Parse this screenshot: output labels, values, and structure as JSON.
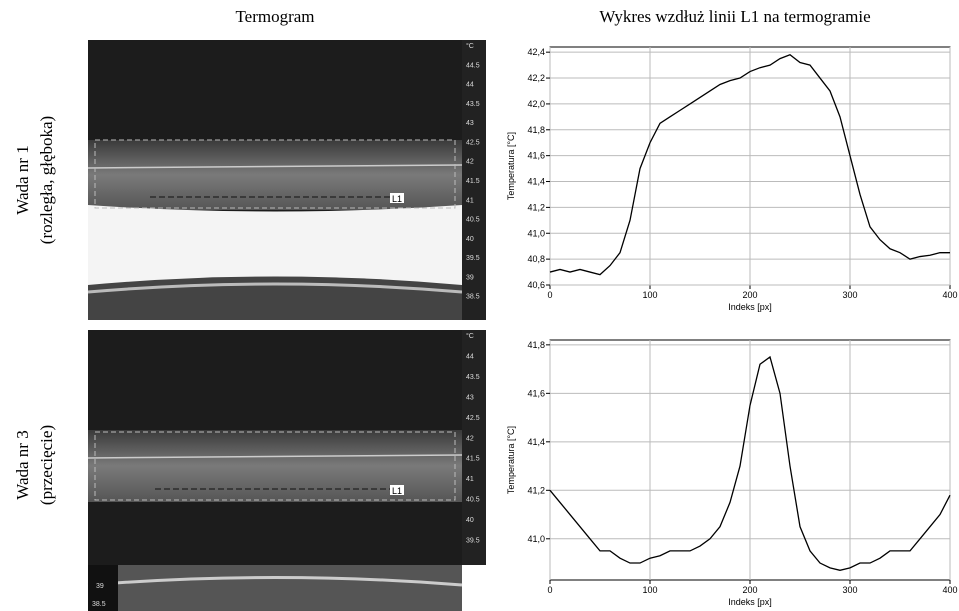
{
  "column_titles": [
    "Termogram",
    "Wykres wzdłuż linii L1 na termogramie"
  ],
  "row_labels": [
    [
      "Wada nr 1",
      "(rozległa, głęboka)"
    ],
    [
      "Wada nr 3",
      "(przecięcie)"
    ]
  ],
  "thermograms": [
    {
      "scale": [
        "°C",
        "44.5",
        "44",
        "43.5",
        "43",
        "42.5",
        "42",
        "41.5",
        "41",
        "40.5",
        "40",
        "39.5",
        "39",
        "38.5"
      ],
      "line_label": "L1"
    },
    {
      "scale": [
        "°C",
        "44",
        "43.5",
        "43",
        "42.5",
        "42",
        "41.5",
        "41",
        "40.5",
        "40",
        "39.5"
      ],
      "line_label": "L1",
      "corner_scale": [
        "39",
        "38.5"
      ]
    }
  ],
  "chart_data": [
    {
      "type": "line",
      "x_label": "Indeks [px]",
      "y_label": "Temperatura [°C]",
      "color": "#000000",
      "grid": true,
      "x": [
        0,
        10,
        20,
        30,
        40,
        50,
        60,
        70,
        80,
        90,
        100,
        110,
        120,
        130,
        140,
        150,
        160,
        170,
        180,
        190,
        200,
        210,
        220,
        230,
        240,
        250,
        260,
        270,
        280,
        290,
        300,
        310,
        320,
        330,
        340,
        350,
        360,
        370,
        380,
        390,
        400
      ],
      "values": [
        40.7,
        40.72,
        40.7,
        40.72,
        40.7,
        40.68,
        40.75,
        40.85,
        41.1,
        41.5,
        41.7,
        41.85,
        41.9,
        41.95,
        42.0,
        42.05,
        42.1,
        42.15,
        42.18,
        42.2,
        42.25,
        42.28,
        42.3,
        42.35,
        42.38,
        42.32,
        42.3,
        42.2,
        42.1,
        41.9,
        41.6,
        41.3,
        41.05,
        40.95,
        40.88,
        40.85,
        40.8,
        40.82,
        40.83,
        40.85,
        40.85
      ],
      "xlim": [
        0,
        400
      ],
      "xticks": [
        0,
        100,
        200,
        300,
        400
      ],
      "ylim": [
        40.6,
        42.44
      ],
      "yticks": [
        {
          "value": 40.6,
          "label": "40,6"
        },
        {
          "value": 40.8,
          "label": "40,8"
        },
        {
          "value": 41.0,
          "label": "41,0"
        },
        {
          "value": 41.2,
          "label": "41,2"
        },
        {
          "value": 41.4,
          "label": "41,4"
        },
        {
          "value": 41.6,
          "label": "41,6"
        },
        {
          "value": 41.8,
          "label": "41,8"
        },
        {
          "value": 42.0,
          "label": "42,0"
        },
        {
          "value": 42.2,
          "label": "42,2"
        },
        {
          "value": 42.4,
          "label": "42,4"
        }
      ]
    },
    {
      "type": "line",
      "x_label": "Indeks [px]",
      "y_label": "Temperatura [°C]",
      "color": "#000000",
      "grid": true,
      "x": [
        0,
        10,
        20,
        30,
        40,
        50,
        60,
        70,
        80,
        90,
        100,
        110,
        120,
        130,
        140,
        150,
        160,
        170,
        180,
        190,
        200,
        210,
        220,
        230,
        240,
        250,
        260,
        270,
        280,
        290,
        300,
        310,
        320,
        330,
        340,
        350,
        360,
        370,
        380,
        390,
        400
      ],
      "values": [
        41.2,
        41.15,
        41.1,
        41.05,
        41.0,
        40.95,
        40.95,
        40.92,
        40.9,
        40.9,
        40.92,
        40.93,
        40.95,
        40.95,
        40.95,
        40.97,
        41.0,
        41.05,
        41.15,
        41.3,
        41.55,
        41.72,
        41.75,
        41.6,
        41.3,
        41.05,
        40.95,
        40.9,
        40.88,
        40.87,
        40.88,
        40.9,
        40.9,
        40.92,
        40.95,
        40.95,
        40.95,
        41.0,
        41.05,
        41.1,
        41.18
      ],
      "xlim": [
        0,
        400
      ],
      "xticks": [
        0,
        100,
        200,
        300,
        400
      ],
      "ylim": [
        40.83,
        41.82
      ],
      "yticks": [
        {
          "value": 41.0,
          "label": "41,0"
        },
        {
          "value": 41.2,
          "label": "41,2"
        },
        {
          "value": 41.4,
          "label": "41,4"
        },
        {
          "value": 41.6,
          "label": "41,6"
        },
        {
          "value": 41.8,
          "label": "41,8"
        }
      ]
    }
  ]
}
